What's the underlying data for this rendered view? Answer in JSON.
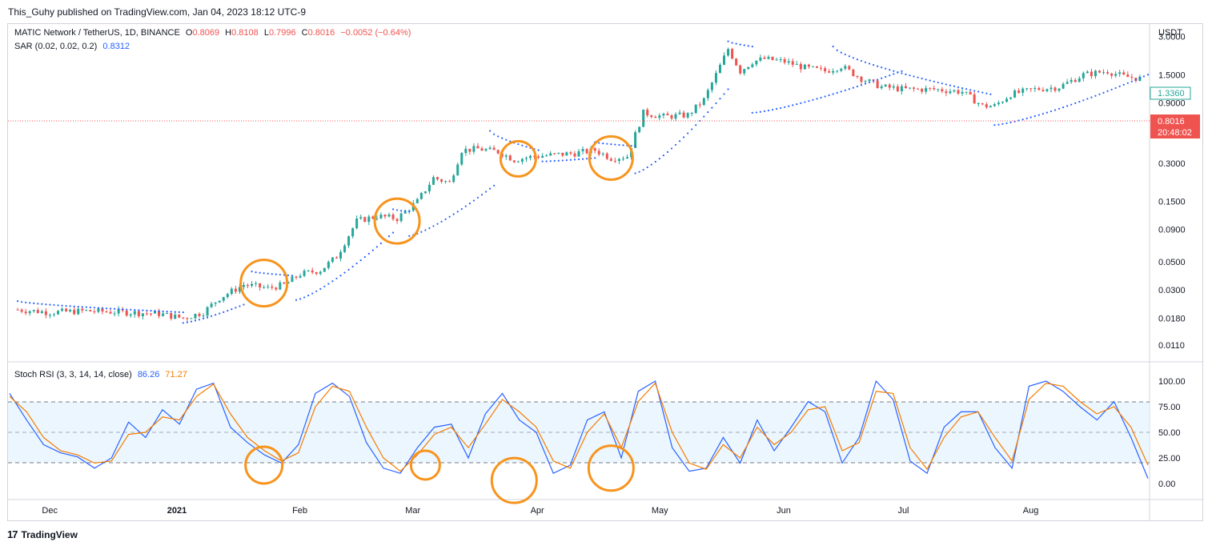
{
  "header": {
    "published": "This_Guhy published on TradingView.com, Jan 04, 2023 18:12 UTC-9"
  },
  "price_legend": {
    "symbol": "MATIC Network / TetherUS, 1D, BINANCE",
    "o_label": "O",
    "o": "0.8069",
    "h_label": "H",
    "h": "0.8108",
    "l_label": "L",
    "l": "0.7996",
    "c_label": "C",
    "c": "0.8016",
    "change": "−0.0052 (−0.64%)"
  },
  "sar_legend": {
    "label": "SAR (0.02, 0.02, 0.2)",
    "value": "0.8312"
  },
  "stoch_legend": {
    "label": "Stoch RSI (3, 3, 14, 14, close)",
    "k": "86.26",
    "d": "71.27"
  },
  "footer": {
    "brand": "TradingView",
    "logo_glyph": "17"
  },
  "colors": {
    "up": "#26a69a",
    "down": "#ef5350",
    "sar": "#2962ff",
    "k_line": "#2962ff",
    "d_line": "#f57c00",
    "highlight": "#f7941d",
    "band_fill": "#e3f2fd",
    "price_line": "#ef5350"
  },
  "chart_data": [
    {
      "type": "candlestick",
      "title": "MATIC Network / TetherUS, 1D, BINANCE",
      "yscale": "log",
      "y_unit": "USDT",
      "ylim": [
        0.009,
        3.5
      ],
      "y_ticks": [
        "3.0000",
        "1.5000",
        "0.9000",
        "0.5000",
        "0.3000",
        "0.1500",
        "0.0900",
        "0.0500",
        "0.0300",
        "0.0180",
        "0.0110"
      ],
      "x_ticks": [
        "Dec",
        "2021",
        "Feb",
        "Mar",
        "Apr",
        "May",
        "Jun",
        "Jul",
        "Aug"
      ],
      "series": [
        {
          "name": "Price",
          "points": [
            [
              "2020-11-23",
              0.021
            ],
            [
              "2020-12-01",
              0.02
            ],
            [
              "2020-12-10",
              0.0205
            ],
            [
              "2020-12-20",
              0.02
            ],
            [
              "2020-12-28",
              0.0195
            ],
            [
              "2021-01-03",
              0.018
            ],
            [
              "2021-01-08",
              0.02
            ],
            [
              "2021-01-12",
              0.026
            ],
            [
              "2021-01-18",
              0.033
            ],
            [
              "2021-01-24",
              0.031
            ],
            [
              "2021-01-28",
              0.033
            ],
            [
              "2021-02-01",
              0.04
            ],
            [
              "2021-02-06",
              0.043
            ],
            [
              "2021-02-10",
              0.055
            ],
            [
              "2021-02-15",
              0.105
            ],
            [
              "2021-02-20",
              0.115
            ],
            [
              "2021-02-25",
              0.11
            ],
            [
              "2021-03-02",
              0.15
            ],
            [
              "2021-03-06",
              0.23
            ],
            [
              "2021-03-10",
              0.21
            ],
            [
              "2021-03-13",
              0.38
            ],
            [
              "2021-03-17",
              0.39
            ],
            [
              "2021-03-22",
              0.37
            ],
            [
              "2021-03-26",
              0.32
            ],
            [
              "2021-03-31",
              0.34
            ],
            [
              "2021-04-05",
              0.35
            ],
            [
              "2021-04-10",
              0.36
            ],
            [
              "2021-04-15",
              0.38
            ],
            [
              "2021-04-19",
              0.33
            ],
            [
              "2021-04-23",
              0.34
            ],
            [
              "2021-04-27",
              0.75
            ],
            [
              "2021-05-02",
              0.7
            ],
            [
              "2021-05-08",
              0.72
            ],
            [
              "2021-05-12",
              0.95
            ],
            [
              "2021-05-15",
              1.5
            ],
            [
              "2021-05-18",
              2.4
            ],
            [
              "2021-05-21",
              1.6
            ],
            [
              "2021-05-24",
              1.9
            ],
            [
              "2021-05-27",
              2.0
            ],
            [
              "2021-06-01",
              1.9
            ],
            [
              "2021-06-06",
              1.7
            ],
            [
              "2021-06-11",
              1.6
            ],
            [
              "2021-06-15",
              1.75
            ],
            [
              "2021-06-20",
              1.4
            ],
            [
              "2021-06-25",
              1.2
            ],
            [
              "2021-07-01",
              1.15
            ],
            [
              "2021-07-08",
              1.15
            ],
            [
              "2021-07-15",
              1.1
            ],
            [
              "2021-07-20",
              0.85
            ],
            [
              "2021-07-23",
              0.85
            ],
            [
              "2021-07-27",
              1.05
            ],
            [
              "2021-08-02",
              1.15
            ],
            [
              "2021-08-08",
              1.2
            ],
            [
              "2021-08-14",
              1.5
            ],
            [
              "2021-08-20",
              1.6
            ],
            [
              "2021-08-24",
              1.45
            ],
            [
              "2021-08-28",
              1.4
            ]
          ]
        },
        {
          "name": "SAR",
          "value": "0.8312"
        }
      ],
      "annotations": "orange circles highlighting buy-the-dip points",
      "current_price": "0.8016",
      "countdown": "20:48:02",
      "price_axis_label": "1.3360"
    },
    {
      "type": "line",
      "title": "Stoch RSI (3, 3, 14, 14, close)",
      "ylim": [
        0,
        100
      ],
      "y_ticks": [
        "100.00",
        "75.00",
        "50.00",
        "25.00",
        "0.00"
      ],
      "bands": [
        20,
        50,
        80
      ],
      "series": [
        {
          "name": "K",
          "last": 86.26,
          "values": [
            88,
            62,
            38,
            30,
            26,
            15,
            25,
            60,
            45,
            72,
            58,
            92,
            98,
            55,
            40,
            28,
            20,
            38,
            88,
            98,
            85,
            40,
            15,
            10,
            35,
            55,
            58,
            25,
            68,
            88,
            62,
            50,
            10,
            18,
            62,
            70,
            25,
            90,
            100,
            35,
            12,
            15,
            45,
            20,
            62,
            32,
            55,
            80,
            70,
            20,
            45,
            100,
            82,
            22,
            10,
            55,
            70,
            70,
            35,
            15,
            95,
            100,
            90,
            75,
            62,
            80,
            45,
            5
          ]
        },
        {
          "name": "D",
          "last": 71.27,
          "values": [
            85,
            70,
            45,
            32,
            28,
            20,
            22,
            48,
            50,
            65,
            62,
            85,
            97,
            68,
            45,
            32,
            22,
            30,
            75,
            95,
            90,
            55,
            25,
            12,
            28,
            48,
            55,
            35,
            58,
            82,
            70,
            55,
            22,
            15,
            50,
            68,
            35,
            80,
            98,
            50,
            20,
            14,
            38,
            25,
            55,
            38,
            50,
            72,
            75,
            32,
            40,
            90,
            88,
            35,
            14,
            45,
            65,
            70,
            45,
            22,
            82,
            98,
            95,
            80,
            68,
            75,
            55,
            18
          ]
        }
      ],
      "x_ticks": [
        "Dec",
        "2021",
        "Feb",
        "Mar",
        "Apr",
        "May",
        "Jun",
        "Jul",
        "Aug"
      ]
    }
  ]
}
